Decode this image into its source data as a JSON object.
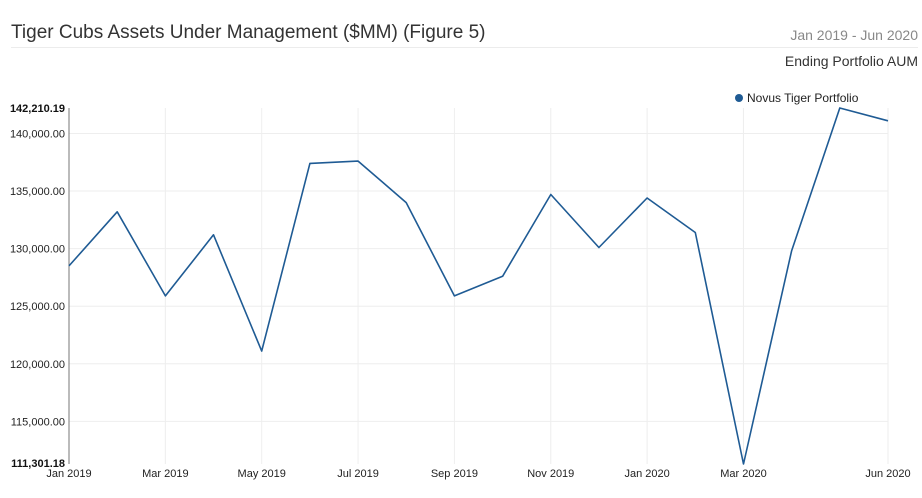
{
  "header": {
    "title": "Tiger Cubs Assets Under Management ($MM) (Figure 5)",
    "date_range": "Jan 2019 - Jun 2020",
    "subtitle": "Ending Portfolio AUM"
  },
  "chart_data": {
    "type": "line",
    "title": "Tiger Cubs Assets Under Management ($MM) (Figure 5)",
    "subtitle": "Ending Portfolio AUM",
    "xlabel": "",
    "ylabel": "",
    "x": [
      "Jan 2019",
      "Feb 2019",
      "Mar 2019",
      "Apr 2019",
      "May 2019",
      "Jun 2019",
      "Jul 2019",
      "Aug 2019",
      "Sep 2019",
      "Oct 2019",
      "Nov 2019",
      "Dec 2019",
      "Jan 2020",
      "Feb 2020",
      "Mar 2020",
      "Apr 2020",
      "May 2020",
      "Jun 2020"
    ],
    "x_tick_labels": [
      "Jan 2019",
      "Mar 2019",
      "May 2019",
      "Jul 2019",
      "Sep 2019",
      "Nov 2019",
      "Jan 2020",
      "Mar 2020",
      "Jun 2020"
    ],
    "series": [
      {
        "name": "Novus Tiger Portfolio",
        "color": "#1f5b94",
        "values": [
          128500,
          133200,
          125900,
          131200,
          121100,
          137400,
          137600,
          134000,
          125900,
          127600,
          134700,
          130100,
          134400,
          131400,
          111301.18,
          129800,
          142210.19,
          141100
        ]
      }
    ],
    "ylim": [
      111301.18,
      142210.19
    ],
    "y_ticks": [
      115000,
      120000,
      125000,
      130000,
      135000,
      140000
    ],
    "y_tick_labels": [
      "115,000.00",
      "120,000.00",
      "125,000.00",
      "130,000.00",
      "135,000.00",
      "140,000.00"
    ],
    "y_min_label": "111,301.18",
    "y_max_label": "142,210.19",
    "grid": true,
    "legend_position": "top-right"
  }
}
